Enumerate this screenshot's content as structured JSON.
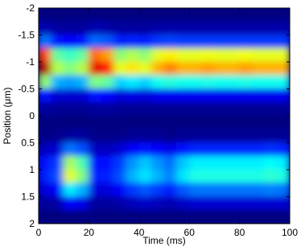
{
  "chart_data": {
    "type": "heatmap",
    "xlabel": "Time (ms)",
    "ylabel": "Position (μm)",
    "colormap": "jet",
    "zlim": [
      0,
      1
    ],
    "y_reversed": true,
    "xlim": [
      0,
      100
    ],
    "xticks": [
      0,
      20,
      40,
      60,
      80,
      100
    ],
    "ylim": [
      -2,
      2
    ],
    "yticks": [
      -2,
      -1.5,
      -1,
      -0.5,
      0,
      0.5,
      1,
      1.5,
      2
    ],
    "x": [
      2.5,
      7.5,
      12.5,
      17.5,
      22.5,
      27.5,
      32.5,
      37.5,
      42.5,
      47.5,
      52.5,
      57.5,
      62.5,
      67.5,
      72.5,
      77.5,
      82.5,
      87.5,
      92.5,
      97.5
    ],
    "y": [
      -1.875,
      -1.625,
      -1.375,
      -1.125,
      -0.875,
      -0.625,
      -0.375,
      -0.125,
      0.125,
      0.375,
      0.625,
      0.875,
      1.125,
      1.375,
      1.625,
      1.875
    ],
    "values": [
      [
        0,
        0,
        0,
        0,
        0,
        0,
        0,
        0,
        0,
        0,
        0,
        0,
        0,
        0,
        0,
        0,
        0,
        0,
        0,
        0
      ],
      [
        0.05,
        0.03,
        0.03,
        0.03,
        0.05,
        0.04,
        0.03,
        0.03,
        0.03,
        0.04,
        0.04,
        0.04,
        0.04,
        0.04,
        0.04,
        0.04,
        0.04,
        0.04,
        0.04,
        0.04
      ],
      [
        0.24,
        0.14,
        0.13,
        0.14,
        0.23,
        0.21,
        0.15,
        0.16,
        0.15,
        0.18,
        0.19,
        0.18,
        0.18,
        0.18,
        0.18,
        0.18,
        0.18,
        0.18,
        0.18,
        0.18
      ],
      [
        0.81,
        0.47,
        0.43,
        0.47,
        0.77,
        0.72,
        0.51,
        0.55,
        0.51,
        0.6,
        0.64,
        0.6,
        0.6,
        0.61,
        0.6,
        0.6,
        0.61,
        0.6,
        0.6,
        0.6
      ],
      [
        0.95,
        0.55,
        0.5,
        0.55,
        0.9,
        0.85,
        0.6,
        0.65,
        0.6,
        0.7,
        0.75,
        0.7,
        0.7,
        0.72,
        0.7,
        0.7,
        0.72,
        0.7,
        0.7,
        0.7
      ],
      [
        0.52,
        0.3,
        0.28,
        0.3,
        0.5,
        0.47,
        0.33,
        0.36,
        0.33,
        0.39,
        0.41,
        0.39,
        0.39,
        0.4,
        0.39,
        0.39,
        0.4,
        0.39,
        0.39,
        0.39
      ],
      [
        0.14,
        0.08,
        0.08,
        0.08,
        0.14,
        0.13,
        0.09,
        0.1,
        0.09,
        0.11,
        0.11,
        0.11,
        0.11,
        0.11,
        0.11,
        0.11,
        0.11,
        0.11,
        0.11,
        0.11
      ],
      [
        0.03,
        0.02,
        0.02,
        0.02,
        0.03,
        0.03,
        0.02,
        0.02,
        0.02,
        0.02,
        0.02,
        0.02,
        0.02,
        0.02,
        0.02,
        0.02,
        0.02,
        0.02,
        0.02,
        0.02
      ],
      [
        0,
        0,
        0,
        0,
        0,
        0,
        0,
        0,
        0,
        0,
        0,
        0,
        0,
        0,
        0,
        0,
        0,
        0,
        0,
        0
      ],
      [
        0.01,
        0.01,
        0.03,
        0.03,
        0.01,
        0.01,
        0.01,
        0.02,
        0.02,
        0.02,
        0.01,
        0.02,
        0.02,
        0.02,
        0.02,
        0.02,
        0.02,
        0.02,
        0.02,
        0.02
      ],
      [
        0.06,
        0.08,
        0.24,
        0.2,
        0.06,
        0.06,
        0.08,
        0.12,
        0.14,
        0.12,
        0.1,
        0.14,
        0.16,
        0.16,
        0.16,
        0.16,
        0.16,
        0.16,
        0.17,
        0.16
      ],
      [
        0.14,
        0.18,
        0.54,
        0.45,
        0.14,
        0.14,
        0.18,
        0.27,
        0.32,
        0.27,
        0.23,
        0.32,
        0.36,
        0.36,
        0.36,
        0.36,
        0.36,
        0.36,
        0.38,
        0.36
      ],
      [
        0.15,
        0.2,
        0.6,
        0.5,
        0.15,
        0.15,
        0.2,
        0.3,
        0.35,
        0.3,
        0.25,
        0.35,
        0.4,
        0.4,
        0.4,
        0.4,
        0.4,
        0.4,
        0.42,
        0.4
      ],
      [
        0.09,
        0.12,
        0.36,
        0.3,
        0.09,
        0.09,
        0.12,
        0.18,
        0.21,
        0.18,
        0.15,
        0.21,
        0.24,
        0.24,
        0.24,
        0.24,
        0.24,
        0.24,
        0.25,
        0.24
      ],
      [
        0.03,
        0.04,
        0.12,
        0.1,
        0.03,
        0.03,
        0.04,
        0.06,
        0.07,
        0.06,
        0.05,
        0.07,
        0.08,
        0.08,
        0.08,
        0.08,
        0.08,
        0.08,
        0.08,
        0.08
      ],
      [
        0,
        0,
        0,
        0,
        0,
        0,
        0,
        0,
        0,
        0,
        0,
        0,
        0,
        0,
        0,
        0,
        0,
        0,
        0,
        0
      ]
    ]
  }
}
